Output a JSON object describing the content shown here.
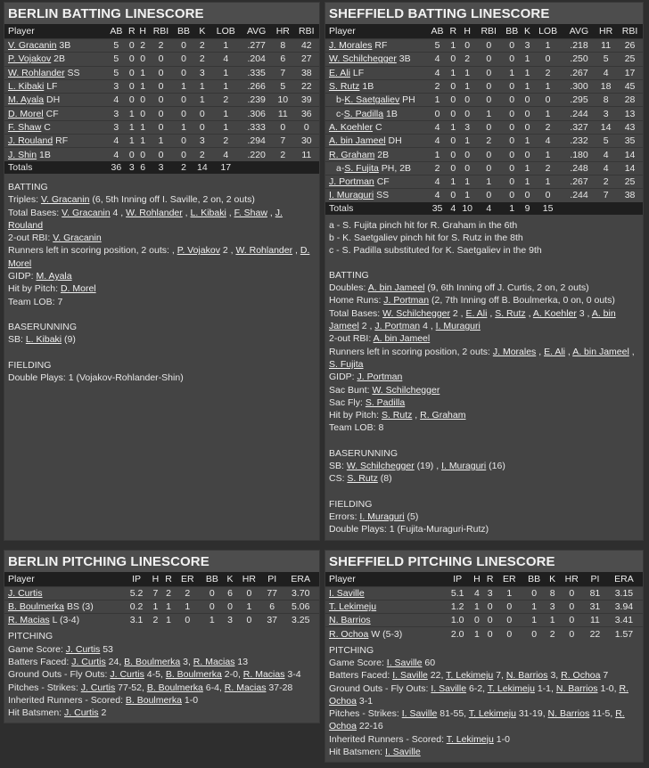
{
  "berlin_batting": {
    "title": "BERLIN BATTING LINESCORE",
    "columns": [
      "Player",
      "AB",
      "R",
      "H",
      "RBI",
      "BB",
      "K",
      "LOB",
      "AVG",
      "HR",
      "RBI"
    ],
    "rows": [
      {
        "prefix": "",
        "name": "V. Gracanin",
        "pos": " 3B",
        "stats": [
          "5",
          "0",
          "2",
          "2",
          "0",
          "2",
          "1",
          ".277",
          "8",
          "42"
        ]
      },
      {
        "prefix": "",
        "name": "P. Vojakov",
        "pos": " 2B",
        "stats": [
          "5",
          "0",
          "0",
          "0",
          "0",
          "2",
          "4",
          ".204",
          "6",
          "27"
        ]
      },
      {
        "prefix": "",
        "name": "W. Rohlander",
        "pos": " SS",
        "stats": [
          "5",
          "0",
          "1",
          "0",
          "0",
          "3",
          "1",
          ".335",
          "7",
          "38"
        ]
      },
      {
        "prefix": "",
        "name": "L. Kibaki",
        "pos": " LF",
        "stats": [
          "3",
          "0",
          "1",
          "0",
          "1",
          "1",
          "1",
          ".266",
          "5",
          "22"
        ]
      },
      {
        "prefix": "",
        "name": "M. Ayala",
        "pos": " DH",
        "stats": [
          "4",
          "0",
          "0",
          "0",
          "0",
          "1",
          "2",
          ".239",
          "10",
          "39"
        ]
      },
      {
        "prefix": "",
        "name": "D. Morel",
        "pos": " CF",
        "stats": [
          "3",
          "1",
          "0",
          "0",
          "0",
          "0",
          "1",
          ".306",
          "11",
          "36"
        ]
      },
      {
        "prefix": "",
        "name": "F. Shaw",
        "pos": " C",
        "stats": [
          "3",
          "1",
          "1",
          "0",
          "1",
          "0",
          "1",
          ".333",
          "0",
          "0"
        ]
      },
      {
        "prefix": "",
        "name": "J. Rouland",
        "pos": " RF",
        "stats": [
          "4",
          "1",
          "1",
          "1",
          "0",
          "3",
          "2",
          ".294",
          "7",
          "30"
        ]
      },
      {
        "prefix": "",
        "name": "J. Shin",
        "pos": " 1B",
        "stats": [
          "4",
          "0",
          "0",
          "0",
          "0",
          "2",
          "4",
          ".220",
          "2",
          "11"
        ]
      }
    ],
    "totals": {
      "label": "Totals",
      "stats": [
        "36",
        "3",
        "6",
        "3",
        "2",
        "14",
        "17",
        "",
        "",
        ""
      ]
    },
    "subs": [],
    "notes": [
      [
        {
          "t": "BATTING"
        }
      ],
      [
        {
          "t": "Triples: "
        },
        {
          "t": "V. Gracanin",
          "link": true
        },
        {
          "t": " (6, 5th Inning off I. Saville, 2 on, 2 outs)"
        }
      ],
      [
        {
          "t": "Total Bases: "
        },
        {
          "t": "V. Gracanin",
          "link": true
        },
        {
          "t": " 4 , "
        },
        {
          "t": "W. Rohlander",
          "link": true
        },
        {
          "t": " , "
        },
        {
          "t": "L. Kibaki",
          "link": true
        },
        {
          "t": " , "
        },
        {
          "t": "F. Shaw",
          "link": true
        },
        {
          "t": " , "
        },
        {
          "t": "J. Rouland",
          "link": true
        }
      ],
      [
        {
          "t": "2-out RBI: "
        },
        {
          "t": "V. Gracanin",
          "link": true
        }
      ],
      [
        {
          "t": "Runners left in scoring position, 2 outs: , "
        },
        {
          "t": "P. Vojakov",
          "link": true
        },
        {
          "t": " 2 , "
        },
        {
          "t": "W. Rohlander",
          "link": true
        },
        {
          "t": " , "
        },
        {
          "t": "D. Morel",
          "link": true
        }
      ],
      [
        {
          "t": "GIDP: "
        },
        {
          "t": "M. Ayala",
          "link": true
        }
      ],
      [
        {
          "t": "Hit by Pitch: "
        },
        {
          "t": "D. Morel",
          "link": true
        }
      ],
      [
        {
          "t": "Team LOB: 7"
        }
      ],
      [],
      [
        {
          "t": "BASERUNNING"
        }
      ],
      [
        {
          "t": "SB: "
        },
        {
          "t": "L. Kibaki",
          "link": true
        },
        {
          "t": " (9)"
        }
      ],
      [],
      [
        {
          "t": "FIELDING"
        }
      ],
      [
        {
          "t": "Double Plays: 1 (Vojakov-Rohlander-Shin)"
        }
      ]
    ]
  },
  "sheffield_batting": {
    "title": "SHEFFIELD BATTING LINESCORE",
    "columns": [
      "Player",
      "AB",
      "R",
      "H",
      "RBI",
      "BB",
      "K",
      "LOB",
      "AVG",
      "HR",
      "RBI"
    ],
    "rows": [
      {
        "prefix": "",
        "name": "J. Morales",
        "pos": " RF",
        "stats": [
          "5",
          "1",
          "0",
          "0",
          "0",
          "3",
          "1",
          ".218",
          "11",
          "26"
        ]
      },
      {
        "prefix": "",
        "name": "W. Schilchegger",
        "pos": " 3B",
        "stats": [
          "4",
          "0",
          "2",
          "0",
          "0",
          "1",
          "0",
          ".250",
          "5",
          "25"
        ]
      },
      {
        "prefix": "",
        "name": "E. Ali",
        "pos": " LF",
        "stats": [
          "4",
          "1",
          "1",
          "0",
          "1",
          "1",
          "2",
          ".267",
          "4",
          "17"
        ]
      },
      {
        "prefix": "",
        "name": "S. Rutz",
        "pos": " 1B",
        "stats": [
          "2",
          "0",
          "1",
          "0",
          "0",
          "1",
          "1",
          ".300",
          "18",
          "45"
        ]
      },
      {
        "prefix": "b-",
        "name": "K. Saetgaliev",
        "pos": " PH",
        "stats": [
          "1",
          "0",
          "0",
          "0",
          "0",
          "0",
          "0",
          ".295",
          "8",
          "28"
        ]
      },
      {
        "prefix": "c-",
        "name": "S. Padilla",
        "pos": " 1B",
        "stats": [
          "0",
          "0",
          "0",
          "1",
          "0",
          "0",
          "1",
          ".244",
          "3",
          "13"
        ]
      },
      {
        "prefix": "",
        "name": "A. Koehler",
        "pos": " C",
        "stats": [
          "4",
          "1",
          "3",
          "0",
          "0",
          "0",
          "2",
          ".327",
          "14",
          "43"
        ]
      },
      {
        "prefix": "",
        "name": "A. bin Jameel",
        "pos": " DH",
        "stats": [
          "4",
          "0",
          "1",
          "2",
          "0",
          "1",
          "4",
          ".232",
          "5",
          "35"
        ]
      },
      {
        "prefix": "",
        "name": "R. Graham",
        "pos": " 2B",
        "stats": [
          "1",
          "0",
          "0",
          "0",
          "0",
          "0",
          "1",
          ".180",
          "4",
          "14"
        ]
      },
      {
        "prefix": "a-",
        "name": "S. Fujita",
        "pos": " PH, 2B",
        "stats": [
          "2",
          "0",
          "0",
          "0",
          "0",
          "1",
          "2",
          ".248",
          "4",
          "14"
        ]
      },
      {
        "prefix": "",
        "name": "J. Portman",
        "pos": " CF",
        "stats": [
          "4",
          "1",
          "1",
          "1",
          "0",
          "1",
          "1",
          ".267",
          "2",
          "25"
        ]
      },
      {
        "prefix": "",
        "name": "I. Muraguri",
        "pos": " SS",
        "stats": [
          "4",
          "0",
          "1",
          "0",
          "0",
          "0",
          "0",
          ".244",
          "7",
          "38"
        ]
      }
    ],
    "totals": {
      "label": "Totals",
      "stats": [
        "35",
        "4",
        "10",
        "4",
        "1",
        "9",
        "15",
        "",
        "",
        ""
      ]
    },
    "subs": [
      "a - S. Fujita pinch hit for R. Graham in the 6th",
      "b - K. Saetgaliev pinch hit for S. Rutz in the 8th",
      "c - S. Padilla substituted for K. Saetgaliev in the 9th"
    ],
    "notes": [
      [
        {
          "t": "BATTING"
        }
      ],
      [
        {
          "t": "Doubles: "
        },
        {
          "t": "A. bin Jameel",
          "link": true
        },
        {
          "t": " (9, 6th Inning off J. Curtis, 2 on, 2 outs)"
        }
      ],
      [
        {
          "t": "Home Runs: "
        },
        {
          "t": "J. Portman",
          "link": true
        },
        {
          "t": " (2, 7th Inning off B. Boulmerka, 0 on, 0 outs)"
        }
      ],
      [
        {
          "t": "Total Bases: "
        },
        {
          "t": "W. Schilchegger",
          "link": true
        },
        {
          "t": " 2 , "
        },
        {
          "t": "E. Ali",
          "link": true
        },
        {
          "t": " , "
        },
        {
          "t": "S. Rutz",
          "link": true
        },
        {
          "t": " , "
        },
        {
          "t": "A. Koehler",
          "link": true
        },
        {
          "t": " 3 , "
        },
        {
          "t": "A. bin Jameel",
          "link": true
        },
        {
          "t": " 2 , "
        },
        {
          "t": "J. Portman",
          "link": true
        },
        {
          "t": " 4 , "
        },
        {
          "t": "I. Muraguri",
          "link": true
        }
      ],
      [
        {
          "t": "2-out RBI: "
        },
        {
          "t": "A. bin Jameel",
          "link": true
        }
      ],
      [
        {
          "t": "Runners left in scoring position, 2 outs: "
        },
        {
          "t": "J. Morales",
          "link": true
        },
        {
          "t": " , "
        },
        {
          "t": "E. Ali",
          "link": true
        },
        {
          "t": " , "
        },
        {
          "t": "A. bin Jameel",
          "link": true
        },
        {
          "t": " , "
        },
        {
          "t": "S. Fujita",
          "link": true
        }
      ],
      [
        {
          "t": "GIDP: "
        },
        {
          "t": "J. Portman",
          "link": true
        }
      ],
      [
        {
          "t": "Sac Bunt: "
        },
        {
          "t": "W. Schilchegger",
          "link": true
        }
      ],
      [
        {
          "t": "Sac Fly: "
        },
        {
          "t": "S. Padilla",
          "link": true
        }
      ],
      [
        {
          "t": "Hit by Pitch: "
        },
        {
          "t": "S. Rutz",
          "link": true
        },
        {
          "t": " , "
        },
        {
          "t": "R. Graham",
          "link": true
        }
      ],
      [
        {
          "t": "Team LOB: 8"
        }
      ],
      [],
      [
        {
          "t": "BASERUNNING"
        }
      ],
      [
        {
          "t": "SB: "
        },
        {
          "t": "W. Schilchegger",
          "link": true
        },
        {
          "t": " (19) , "
        },
        {
          "t": "I. Muraguri",
          "link": true
        },
        {
          "t": " (16)"
        }
      ],
      [
        {
          "t": "CS: "
        },
        {
          "t": "S. Rutz",
          "link": true
        },
        {
          "t": " (8)"
        }
      ],
      [],
      [
        {
          "t": "FIELDING"
        }
      ],
      [
        {
          "t": "Errors: "
        },
        {
          "t": "I. Muraguri",
          "link": true
        },
        {
          "t": " (5)"
        }
      ],
      [
        {
          "t": "Double Plays: 1 (Fujita-Muraguri-Rutz)"
        }
      ]
    ]
  },
  "berlin_pitching": {
    "title": "BERLIN PITCHING LINESCORE",
    "columns": [
      "Player",
      "IP",
      "H",
      "R",
      "ER",
      "BB",
      "K",
      "HR",
      "PI",
      "ERA"
    ],
    "rows": [
      {
        "prefix": "",
        "name": "J. Curtis",
        "pos": "",
        "stats": [
          "5.2",
          "7",
          "2",
          "2",
          "0",
          "6",
          "0",
          "77",
          "3.70"
        ]
      },
      {
        "prefix": "",
        "name": "B. Boulmerka",
        "pos": " BS (3)",
        "stats": [
          "0.2",
          "1",
          "1",
          "1",
          "0",
          "0",
          "1",
          "6",
          "5.06"
        ]
      },
      {
        "prefix": "",
        "name": "R. Macias",
        "pos": " L (3-4)",
        "stats": [
          "3.1",
          "2",
          "1",
          "0",
          "1",
          "3",
          "0",
          "37",
          "3.25"
        ]
      }
    ],
    "notes": [
      [
        {
          "t": "PITCHING"
        }
      ],
      [
        {
          "t": "Game Score: "
        },
        {
          "t": "J. Curtis",
          "link": true
        },
        {
          "t": " 53"
        }
      ],
      [
        {
          "t": "Batters Faced: "
        },
        {
          "t": "J. Curtis",
          "link": true
        },
        {
          "t": " 24, "
        },
        {
          "t": "B. Boulmerka",
          "link": true
        },
        {
          "t": " 3, "
        },
        {
          "t": "R. Macias",
          "link": true
        },
        {
          "t": " 13"
        }
      ],
      [
        {
          "t": "Ground Outs - Fly Outs: "
        },
        {
          "t": "J. Curtis",
          "link": true
        },
        {
          "t": " 4-5, "
        },
        {
          "t": "B. Boulmerka",
          "link": true
        },
        {
          "t": " 2-0, "
        },
        {
          "t": "R. Macias",
          "link": true
        },
        {
          "t": " 3-4"
        }
      ],
      [
        {
          "t": "Pitches - Strikes: "
        },
        {
          "t": "J. Curtis",
          "link": true
        },
        {
          "t": " 77-52, "
        },
        {
          "t": "B. Boulmerka",
          "link": true
        },
        {
          "t": " 6-4, "
        },
        {
          "t": "R. Macias",
          "link": true
        },
        {
          "t": " 37-28"
        }
      ],
      [
        {
          "t": "Inherited Runners - Scored: "
        },
        {
          "t": "B. Boulmerka",
          "link": true
        },
        {
          "t": " 1-0"
        }
      ],
      [
        {
          "t": "Hit Batsmen: "
        },
        {
          "t": "J. Curtis",
          "link": true
        },
        {
          "t": " 2"
        }
      ]
    ]
  },
  "sheffield_pitching": {
    "title": "SHEFFIELD PITCHING LINESCORE",
    "columns": [
      "Player",
      "IP",
      "H",
      "R",
      "ER",
      "BB",
      "K",
      "HR",
      "PI",
      "ERA"
    ],
    "rows": [
      {
        "prefix": "",
        "name": "I. Saville",
        "pos": "",
        "stats": [
          "5.1",
          "4",
          "3",
          "1",
          "0",
          "8",
          "0",
          "81",
          "3.15"
        ]
      },
      {
        "prefix": "",
        "name": "T. Lekimeju",
        "pos": "",
        "stats": [
          "1.2",
          "1",
          "0",
          "0",
          "1",
          "3",
          "0",
          "31",
          "3.94"
        ]
      },
      {
        "prefix": "",
        "name": "N. Barrios",
        "pos": "",
        "stats": [
          "1.0",
          "0",
          "0",
          "0",
          "1",
          "1",
          "0",
          "11",
          "3.41"
        ]
      },
      {
        "prefix": "",
        "name": "R. Ochoa",
        "pos": " W (5-3)",
        "stats": [
          "2.0",
          "1",
          "0",
          "0",
          "0",
          "2",
          "0",
          "22",
          "1.57"
        ]
      }
    ],
    "notes": [
      [
        {
          "t": "PITCHING"
        }
      ],
      [
        {
          "t": "Game Score: "
        },
        {
          "t": "I. Saville",
          "link": true
        },
        {
          "t": " 60"
        }
      ],
      [
        {
          "t": "Batters Faced: "
        },
        {
          "t": "I. Saville",
          "link": true
        },
        {
          "t": " 22, "
        },
        {
          "t": "T. Lekimeju",
          "link": true
        },
        {
          "t": " 7, "
        },
        {
          "t": "N. Barrios",
          "link": true
        },
        {
          "t": " 3, "
        },
        {
          "t": "R. Ochoa",
          "link": true
        },
        {
          "t": " 7"
        }
      ],
      [
        {
          "t": "Ground Outs - Fly Outs: "
        },
        {
          "t": "I. Saville",
          "link": true
        },
        {
          "t": " 6-2, "
        },
        {
          "t": "T. Lekimeju",
          "link": true
        },
        {
          "t": " 1-1, "
        },
        {
          "t": "N. Barrios",
          "link": true
        },
        {
          "t": " 1-0, "
        },
        {
          "t": "R. Ochoa",
          "link": true
        },
        {
          "t": " 3-1"
        }
      ],
      [
        {
          "t": "Pitches - Strikes: "
        },
        {
          "t": "I. Saville",
          "link": true
        },
        {
          "t": " 81-55, "
        },
        {
          "t": "T. Lekimeju",
          "link": true
        },
        {
          "t": " 31-19, "
        },
        {
          "t": "N. Barrios",
          "link": true
        },
        {
          "t": " 11-5, "
        },
        {
          "t": "R. Ochoa",
          "link": true
        },
        {
          "t": " 22-16"
        }
      ],
      [
        {
          "t": "Inherited Runners - Scored: "
        },
        {
          "t": "T. Lekimeju",
          "link": true
        },
        {
          "t": " 1-0"
        }
      ],
      [
        {
          "t": "Hit Batsmen: "
        },
        {
          "t": "I. Saville",
          "link": true
        }
      ]
    ]
  }
}
